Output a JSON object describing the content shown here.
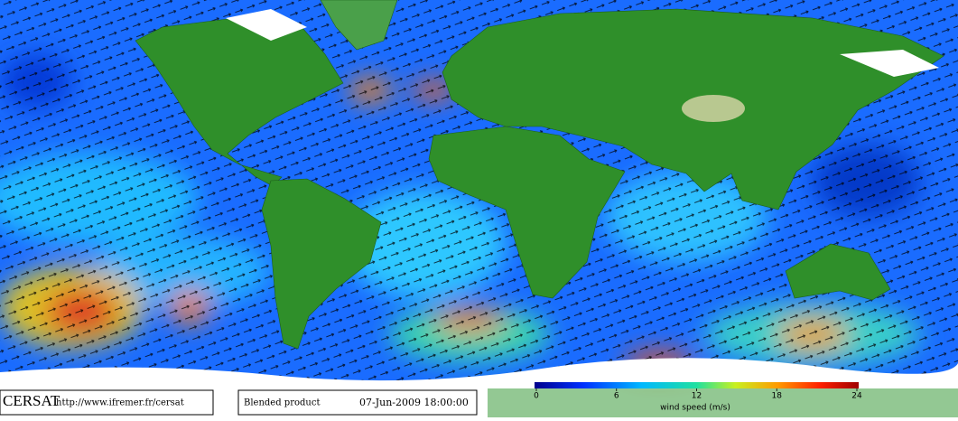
{
  "footer": {
    "logo": "CERSAT",
    "url": "http://www.ifremer.fr/cersat",
    "product": "Blended product",
    "date": "07-Jun-2009 18:00:00"
  },
  "colorbar": {
    "range": [
      0,
      24
    ],
    "ticks": [
      0,
      6,
      12,
      18,
      24
    ],
    "label": "wind speed (m/s)"
  }
}
